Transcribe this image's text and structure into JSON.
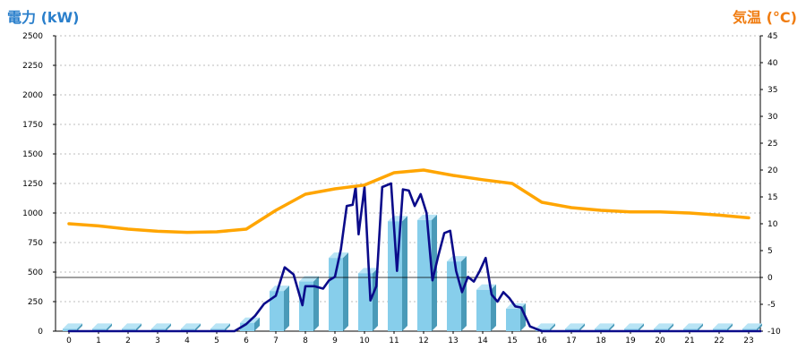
{
  "chart_data": {
    "type": "bar",
    "title_left": "電力 (kW)",
    "title_right": "気温 (°C)",
    "x": [
      "0",
      "1",
      "2",
      "3",
      "4",
      "5",
      "6",
      "7",
      "8",
      "9",
      "10",
      "11",
      "12",
      "13",
      "14",
      "15",
      "16",
      "17",
      "18",
      "19",
      "20",
      "21",
      "22",
      "23"
    ],
    "y_left_ticks": [
      "0",
      "250",
      "500",
      "750",
      "1000",
      "1250",
      "1500",
      "1750",
      "2000",
      "2250",
      "2500"
    ],
    "y_right_ticks": [
      "45",
      "40",
      "35",
      "30",
      "25",
      "20",
      "15",
      "10",
      "5",
      "0",
      "-5",
      "-10"
    ],
    "ylim_left": [
      0,
      2500
    ],
    "ylim_right": [
      -10,
      45
    ],
    "grid": true,
    "series": [
      {
        "kind": "bar",
        "axis": "left",
        "color": "#87ceeb",
        "values": [
          20,
          20,
          20,
          20,
          20,
          20,
          70,
          340,
          420,
          620,
          490,
          930,
          940,
          590,
          350,
          190,
          20,
          20,
          20,
          20,
          20,
          20,
          20,
          20
        ]
      },
      {
        "kind": "line",
        "axis": "left",
        "color": "#0b0b8a",
        "x": [
          0,
          5,
          5.6,
          6,
          6.3,
          6.6,
          7,
          7.3,
          7.6,
          7.9,
          8.0,
          8.3,
          8.6,
          8.8,
          9.0,
          9.2,
          9.4,
          9.6,
          9.7,
          9.8,
          10.0,
          10.2,
          10.4,
          10.6,
          10.9,
          11.1,
          11.3,
          11.5,
          11.7,
          11.9,
          12.1,
          12.3,
          12.5,
          12.7,
          12.9,
          13.1,
          13.3,
          13.5,
          13.7,
          13.9,
          14.1,
          14.3,
          14.5,
          14.7,
          14.9,
          15.1,
          15.3,
          15.6,
          16,
          23.4
        ],
        "values": [
          0,
          0,
          0,
          60,
          130,
          230,
          300,
          540,
          480,
          220,
          380,
          380,
          360,
          430,
          460,
          690,
          1060,
          1070,
          1220,
          820,
          1220,
          260,
          380,
          1220,
          1250,
          510,
          1200,
          1190,
          1060,
          1160,
          1000,
          430,
          640,
          830,
          850,
          510,
          330,
          460,
          420,
          510,
          620,
          310,
          250,
          330,
          280,
          210,
          200,
          40,
          0,
          0
        ]
      },
      {
        "kind": "line",
        "axis": "right",
        "color": "#ffa500",
        "x": [
          0,
          1,
          2,
          3,
          4,
          5,
          6,
          7,
          8,
          9,
          10,
          11,
          12,
          13,
          14,
          15,
          16,
          17,
          18,
          19,
          20,
          21,
          22,
          23
        ],
        "values": [
          10,
          9.6,
          9,
          8.6,
          8.4,
          8.5,
          9,
          12.5,
          15.5,
          16.5,
          17.2,
          19.5,
          20,
          19,
          18.2,
          17.5,
          14,
          13,
          12.5,
          12.2,
          12.2,
          12,
          11.6,
          11.1
        ]
      }
    ]
  }
}
